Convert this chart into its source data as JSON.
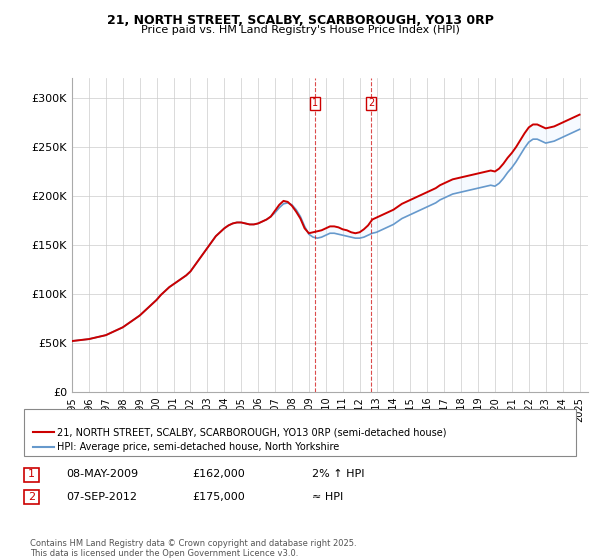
{
  "title_line1": "21, NORTH STREET, SCALBY, SCARBOROUGH, YO13 0RP",
  "title_line2": "Price paid vs. HM Land Registry's House Price Index (HPI)",
  "ylabel": "",
  "xlim_start": 1995.0,
  "xlim_end": 2025.5,
  "ylim_bottom": 0,
  "ylim_top": 320000,
  "yticks": [
    0,
    50000,
    100000,
    150000,
    200000,
    250000,
    300000
  ],
  "ytick_labels": [
    "£0",
    "£50K",
    "£100K",
    "£150K",
    "£200K",
    "£250K",
    "£300K"
  ],
  "xtick_years": [
    1995,
    1996,
    1997,
    1998,
    1999,
    2000,
    2001,
    2002,
    2003,
    2004,
    2005,
    2006,
    2007,
    2008,
    2009,
    2010,
    2011,
    2012,
    2013,
    2014,
    2015,
    2016,
    2017,
    2018,
    2019,
    2020,
    2021,
    2022,
    2023,
    2024,
    2025
  ],
  "legend_line1": "21, NORTH STREET, SCALBY, SCARBOROUGH, YO13 0RP (semi-detached house)",
  "legend_line2": "HPI: Average price, semi-detached house, North Yorkshire",
  "sale1_date": "08-MAY-2009",
  "sale1_price": "£162,000",
  "sale1_hpi": "2% ↑ HPI",
  "sale1_x": 2009.35,
  "sale1_y": 162000,
  "sale2_date": "07-SEP-2012",
  "sale2_price": "£175,000",
  "sale2_hpi": "≈ HPI",
  "sale2_x": 2012.68,
  "sale2_y": 175000,
  "line_color_red": "#cc0000",
  "line_color_blue": "#6699cc",
  "shade_color": "#ddeeff",
  "footer": "Contains HM Land Registry data © Crown copyright and database right 2025.\nThis data is licensed under the Open Government Licence v3.0.",
  "hpi_data_x": [
    1995.0,
    1995.25,
    1995.5,
    1995.75,
    1996.0,
    1996.25,
    1996.5,
    1996.75,
    1997.0,
    1997.25,
    1997.5,
    1997.75,
    1998.0,
    1998.25,
    1998.5,
    1998.75,
    1999.0,
    1999.25,
    1999.5,
    1999.75,
    2000.0,
    2000.25,
    2000.5,
    2000.75,
    2001.0,
    2001.25,
    2001.5,
    2001.75,
    2002.0,
    2002.25,
    2002.5,
    2002.75,
    2003.0,
    2003.25,
    2003.5,
    2003.75,
    2004.0,
    2004.25,
    2004.5,
    2004.75,
    2005.0,
    2005.25,
    2005.5,
    2005.75,
    2006.0,
    2006.25,
    2006.5,
    2006.75,
    2007.0,
    2007.25,
    2007.5,
    2007.75,
    2008.0,
    2008.25,
    2008.5,
    2008.75,
    2009.0,
    2009.25,
    2009.5,
    2009.75,
    2010.0,
    2010.25,
    2010.5,
    2010.75,
    2011.0,
    2011.25,
    2011.5,
    2011.75,
    2012.0,
    2012.25,
    2012.5,
    2012.75,
    2013.0,
    2013.25,
    2013.5,
    2013.75,
    2014.0,
    2014.25,
    2014.5,
    2014.75,
    2015.0,
    2015.25,
    2015.5,
    2015.75,
    2016.0,
    2016.25,
    2016.5,
    2016.75,
    2017.0,
    2017.25,
    2017.5,
    2017.75,
    2018.0,
    2018.25,
    2018.5,
    2018.75,
    2019.0,
    2019.25,
    2019.5,
    2019.75,
    2020.0,
    2020.25,
    2020.5,
    2020.75,
    2021.0,
    2021.25,
    2021.5,
    2021.75,
    2022.0,
    2022.25,
    2022.5,
    2022.75,
    2023.0,
    2023.25,
    2023.5,
    2023.75,
    2024.0,
    2024.25,
    2024.5,
    2024.75,
    2025.0
  ],
  "hpi_data_y": [
    52000,
    52500,
    53000,
    53500,
    54000,
    55000,
    56000,
    57000,
    58000,
    60000,
    62000,
    64000,
    66000,
    69000,
    72000,
    75000,
    78000,
    82000,
    86000,
    90000,
    94000,
    99000,
    103000,
    107000,
    110000,
    113000,
    116000,
    119000,
    123000,
    129000,
    135000,
    141000,
    147000,
    153000,
    159000,
    163000,
    167000,
    170000,
    172000,
    173000,
    173000,
    172000,
    171000,
    171000,
    172000,
    174000,
    176000,
    179000,
    183000,
    188000,
    192000,
    193000,
    191000,
    186000,
    179000,
    169000,
    161000,
    158000,
    157000,
    158000,
    160000,
    162000,
    162000,
    161000,
    160000,
    159000,
    158000,
    157000,
    157000,
    158000,
    160000,
    162000,
    163000,
    165000,
    167000,
    169000,
    171000,
    174000,
    177000,
    179000,
    181000,
    183000,
    185000,
    187000,
    189000,
    191000,
    193000,
    196000,
    198000,
    200000,
    202000,
    203000,
    204000,
    205000,
    206000,
    207000,
    208000,
    209000,
    210000,
    211000,
    210000,
    213000,
    218000,
    224000,
    229000,
    235000,
    242000,
    249000,
    255000,
    258000,
    258000,
    256000,
    254000,
    255000,
    256000,
    258000,
    260000,
    262000,
    264000,
    266000,
    268000
  ],
  "price_data_x": [
    1995.0,
    1995.25,
    1995.5,
    1995.75,
    1996.0,
    1996.25,
    1996.5,
    1996.75,
    1997.0,
    1997.25,
    1997.5,
    1997.75,
    1998.0,
    1998.25,
    1998.5,
    1998.75,
    1999.0,
    1999.25,
    1999.5,
    1999.75,
    2000.0,
    2000.25,
    2000.5,
    2000.75,
    2001.0,
    2001.25,
    2001.5,
    2001.75,
    2002.0,
    2002.25,
    2002.5,
    2002.75,
    2003.0,
    2003.25,
    2003.5,
    2003.75,
    2004.0,
    2004.25,
    2004.5,
    2004.75,
    2005.0,
    2005.25,
    2005.5,
    2005.75,
    2006.0,
    2006.25,
    2006.5,
    2006.75,
    2007.0,
    2007.25,
    2007.5,
    2007.75,
    2008.0,
    2008.25,
    2008.5,
    2008.75,
    2009.0,
    2009.25,
    2009.5,
    2009.75,
    2010.0,
    2010.25,
    2010.5,
    2010.75,
    2011.0,
    2011.25,
    2011.5,
    2011.75,
    2012.0,
    2012.25,
    2012.5,
    2012.75,
    2013.0,
    2013.25,
    2013.5,
    2013.75,
    2014.0,
    2014.25,
    2014.5,
    2014.75,
    2015.0,
    2015.25,
    2015.5,
    2015.75,
    2016.0,
    2016.25,
    2016.5,
    2016.75,
    2017.0,
    2017.25,
    2017.5,
    2017.75,
    2018.0,
    2018.25,
    2018.5,
    2018.75,
    2019.0,
    2019.25,
    2019.5,
    2019.75,
    2020.0,
    2020.25,
    2020.5,
    2020.75,
    2021.0,
    2021.25,
    2021.5,
    2021.75,
    2022.0,
    2022.25,
    2022.5,
    2022.75,
    2023.0,
    2023.25,
    2023.5,
    2023.75,
    2024.0,
    2024.25,
    2024.5,
    2024.75,
    2025.0
  ],
  "price_data_y": [
    52000,
    52500,
    53000,
    53500,
    54000,
    55000,
    56000,
    57000,
    58000,
    60000,
    62000,
    64000,
    66000,
    69000,
    72000,
    75000,
    78000,
    82000,
    86000,
    90000,
    94000,
    99000,
    103000,
    107000,
    110000,
    113000,
    116000,
    119000,
    123000,
    129000,
    135000,
    141000,
    147000,
    153000,
    159000,
    163000,
    167000,
    170000,
    172000,
    173000,
    173000,
    172000,
    171000,
    171000,
    172000,
    174000,
    176000,
    179000,
    185000,
    191000,
    195000,
    194000,
    190000,
    184000,
    177000,
    167000,
    162000,
    163000,
    164000,
    165000,
    167000,
    169000,
    169000,
    168000,
    166000,
    165000,
    163000,
    162000,
    163000,
    166000,
    170000,
    176000,
    178000,
    180000,
    182000,
    184000,
    186000,
    189000,
    192000,
    194000,
    196000,
    198000,
    200000,
    202000,
    204000,
    206000,
    208000,
    211000,
    213000,
    215000,
    217000,
    218000,
    219000,
    220000,
    221000,
    222000,
    223000,
    224000,
    225000,
    226000,
    225000,
    228000,
    233000,
    239000,
    244000,
    250000,
    257000,
    264000,
    270000,
    273000,
    273000,
    271000,
    269000,
    270000,
    271000,
    273000,
    275000,
    277000,
    279000,
    281000,
    283000
  ]
}
